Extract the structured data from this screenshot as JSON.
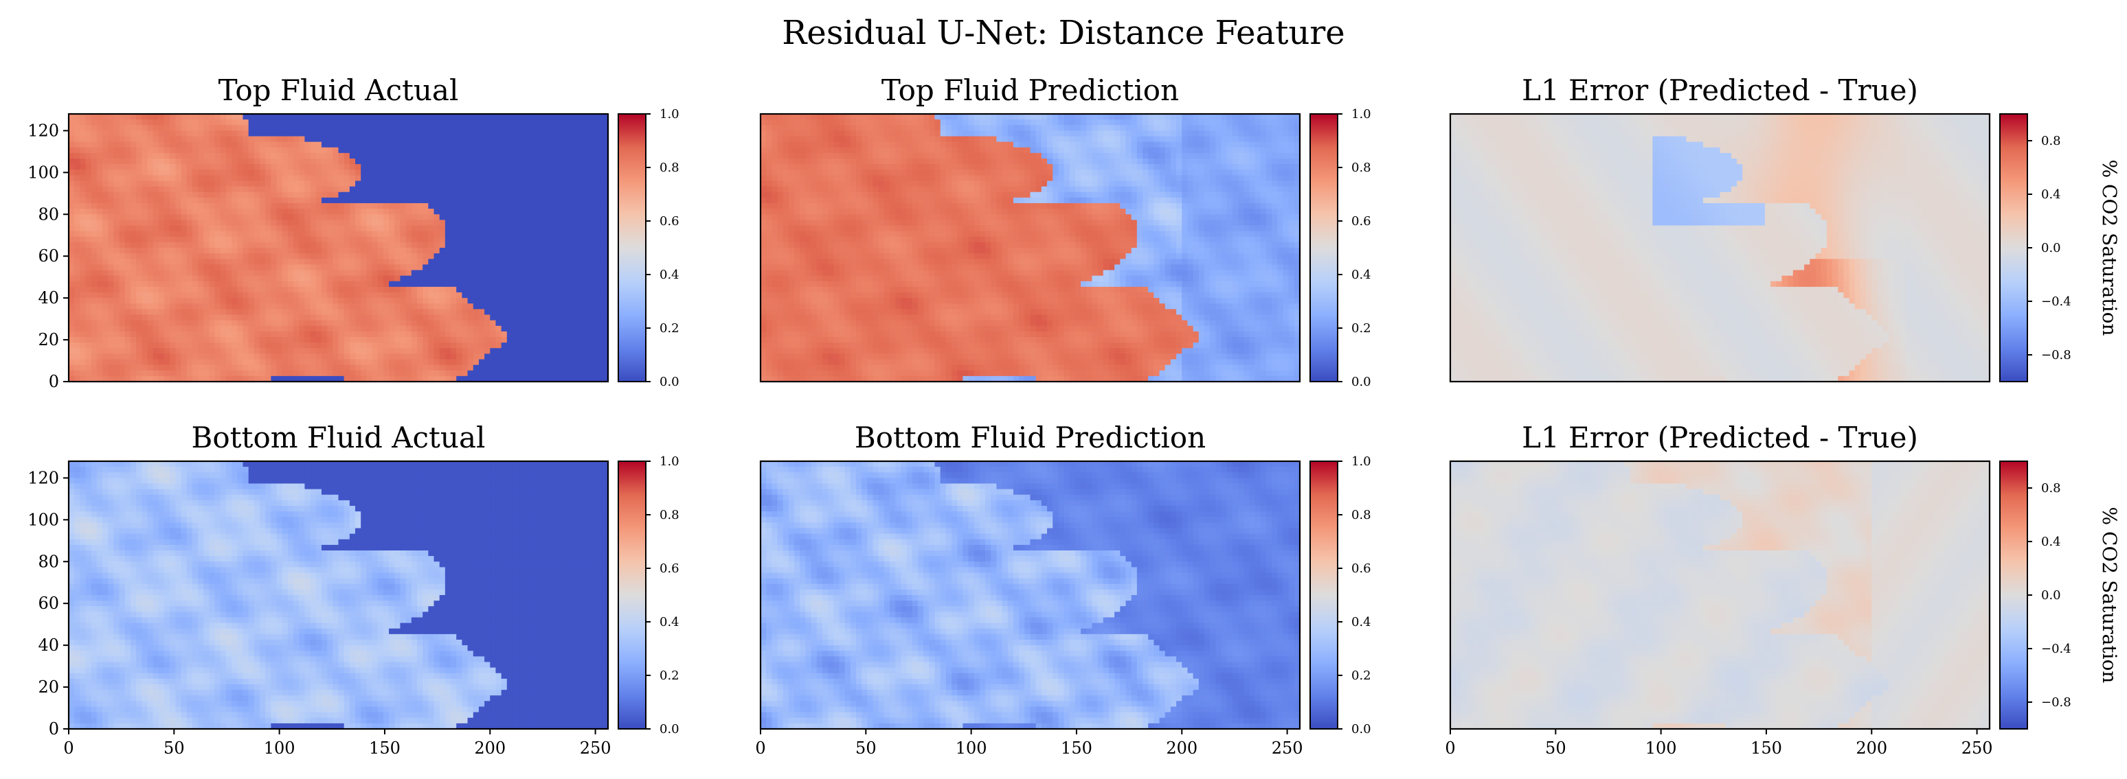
{
  "figure_title": "Residual U-Net: Distance Feature",
  "chart_data": {
    "type": "heatmap",
    "title": "Residual U-Net: Distance Feature",
    "layout": "2 rows x 3 columns",
    "x_range": [
      0,
      256
    ],
    "y_range": [
      0,
      128
    ],
    "x_ticks": [
      "0",
      "50",
      "100",
      "150",
      "200",
      "250"
    ],
    "y_ticks": [
      "0",
      "20",
      "40",
      "60",
      "80",
      "100",
      "120"
    ],
    "colormap": "coolwarm",
    "colormap_stops": [
      "#3b4cc0",
      "#6282ea",
      "#8db0fe",
      "#b8d0f9",
      "#dddcdc",
      "#f5c4ac",
      "#f4987a",
      "#e26952",
      "#b40426"
    ],
    "panels": [
      {
        "title": "Top Fluid Actual",
        "row": 0,
        "col": 0,
        "field": "top_actual",
        "vmin": 0,
        "vmax": 1,
        "cbar_ticks": [
          "0.0",
          "0.2",
          "0.4",
          "0.6",
          "0.8",
          "1.0"
        ],
        "cbar_label": "",
        "x_ticks_shown": false,
        "y_ticks_shown": true
      },
      {
        "title": "Top Fluid Prediction",
        "row": 0,
        "col": 1,
        "field": "top_pred",
        "vmin": 0,
        "vmax": 1,
        "cbar_ticks": [
          "0.0",
          "0.2",
          "0.4",
          "0.6",
          "0.8",
          "1.0"
        ],
        "cbar_label": "",
        "x_ticks_shown": false,
        "y_ticks_shown": false
      },
      {
        "title": "L1 Error (Predicted - True)",
        "row": 0,
        "col": 2,
        "field": "top_err",
        "vmin": -1,
        "vmax": 1,
        "cbar_ticks": [
          "−0.8",
          "−0.4",
          "0.0",
          "0.4",
          "0.8"
        ],
        "cbar_label": "% CO2 Saturation",
        "x_ticks_shown": false,
        "y_ticks_shown": false
      },
      {
        "title": "Bottom Fluid Actual",
        "row": 1,
        "col": 0,
        "field": "bot_actual",
        "vmin": 0,
        "vmax": 1,
        "cbar_ticks": [
          "0.0",
          "0.2",
          "0.4",
          "0.6",
          "0.8",
          "1.0"
        ],
        "cbar_label": "",
        "x_ticks_shown": true,
        "y_ticks_shown": true
      },
      {
        "title": "Bottom Fluid Prediction",
        "row": 1,
        "col": 1,
        "field": "bot_pred",
        "vmin": 0,
        "vmax": 1,
        "cbar_ticks": [
          "0.0",
          "0.2",
          "0.4",
          "0.6",
          "0.8",
          "1.0"
        ],
        "cbar_label": "",
        "x_ticks_shown": true,
        "y_ticks_shown": false
      },
      {
        "title": "L1 Error (Predicted - True)",
        "row": 1,
        "col": 2,
        "field": "bot_err",
        "vmin": -1,
        "vmax": 1,
        "cbar_ticks": [
          "−0.8",
          "−0.4",
          "0.0",
          "0.4",
          "0.8"
        ],
        "cbar_label": "% CO2 Saturation",
        "x_ticks_shown": true,
        "y_ticks_shown": false
      }
    ]
  }
}
